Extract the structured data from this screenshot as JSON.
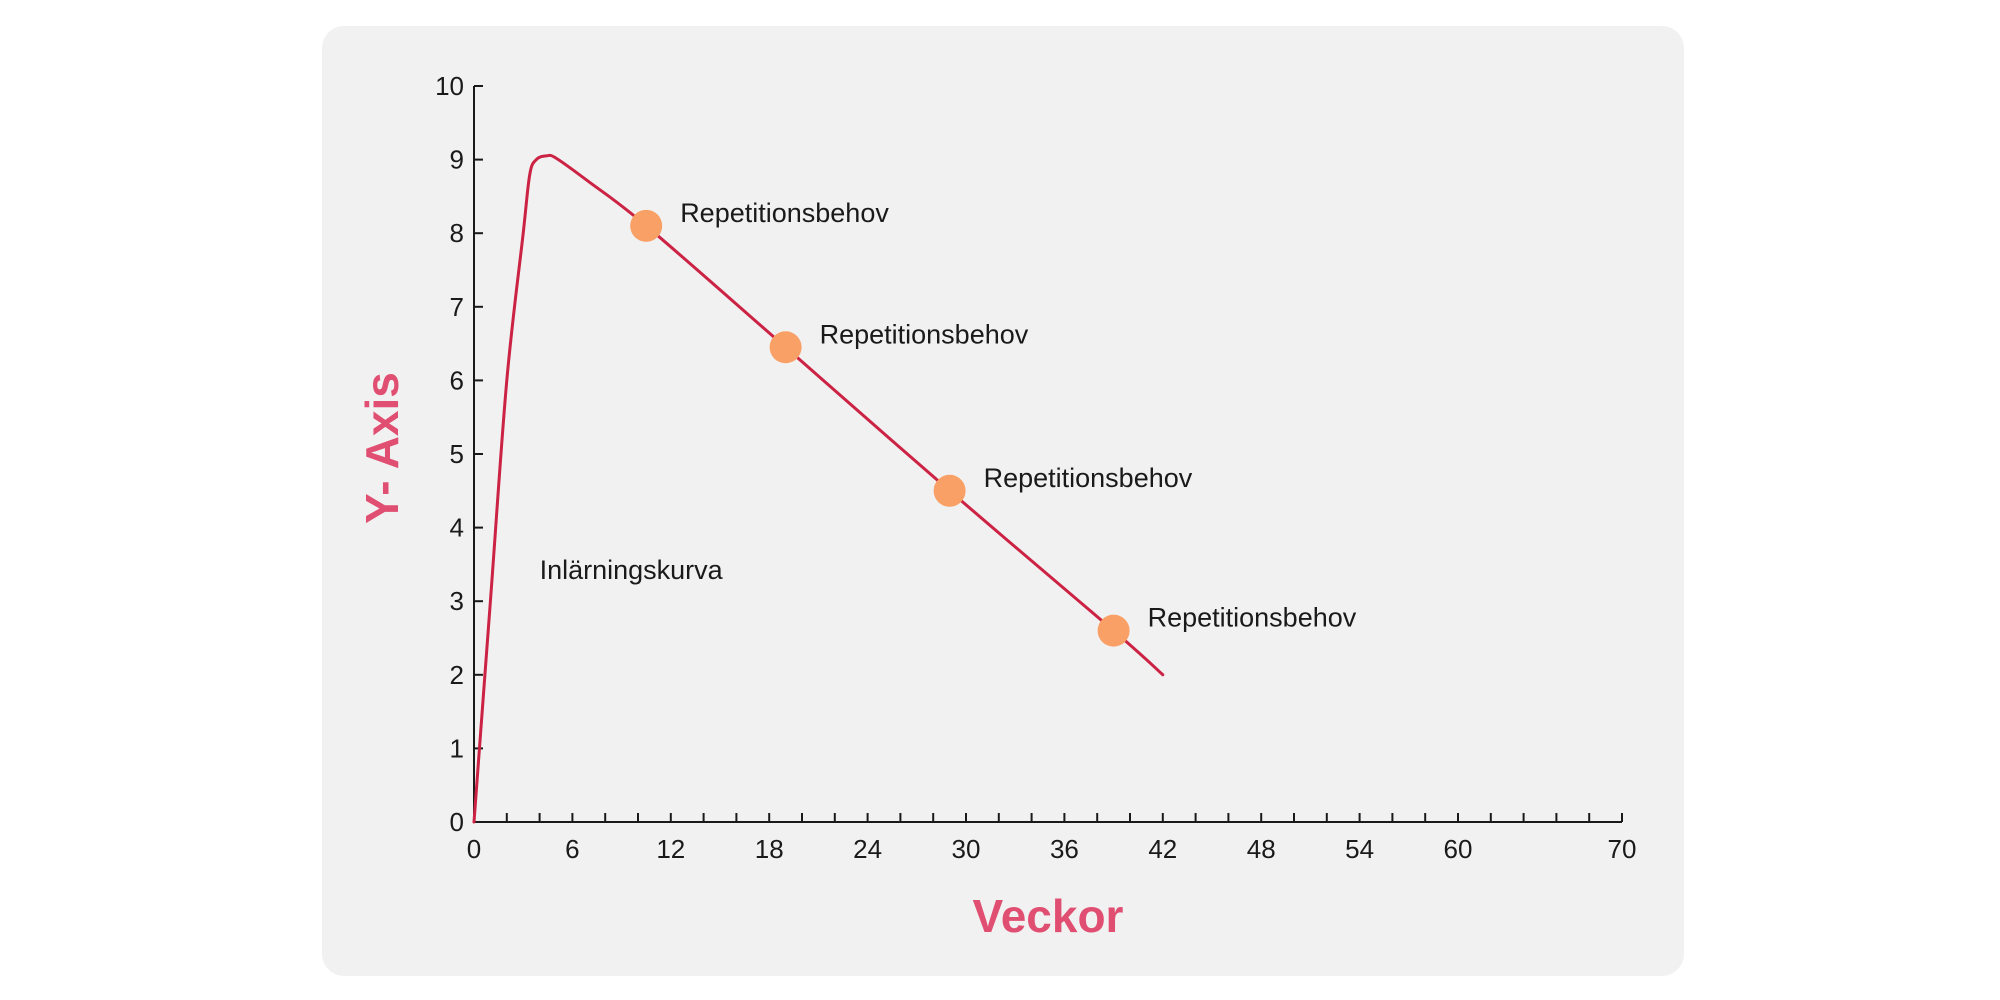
{
  "colors": {
    "curve": "#cc2244",
    "marker": "#f9a066",
    "axis": "#1a1a1a",
    "axis_title": "#e04f72"
  },
  "chart_data": {
    "type": "line",
    "title": "",
    "xlabel": "Veckor",
    "ylabel": "Y- Axis",
    "xlim": [
      0,
      70
    ],
    "ylim": [
      0,
      10
    ],
    "x_ticks": [
      0,
      6,
      12,
      18,
      24,
      30,
      36,
      42,
      48,
      54,
      60,
      70
    ],
    "y_ticks": [
      0,
      1,
      2,
      3,
      4,
      5,
      6,
      7,
      8,
      9,
      10
    ],
    "grid": false,
    "series": [
      {
        "name": "Inlärningskurva",
        "x": [
          0,
          1,
          2,
          3,
          3.4,
          3.8,
          4.4,
          5,
          7,
          10.5,
          19,
          29,
          39,
          42
        ],
        "y": [
          0,
          3.0,
          6.0,
          8.0,
          8.8,
          9.0,
          9.05,
          9.02,
          8.7,
          8.1,
          6.45,
          4.5,
          2.6,
          2.0
        ]
      }
    ],
    "markers": [
      {
        "x": 10.5,
        "y": 8.1,
        "label": "Repetitionsbehov"
      },
      {
        "x": 19,
        "y": 6.45,
        "label": "Repetitionsbehov"
      },
      {
        "x": 29,
        "y": 4.5,
        "label": "Repetitionsbehov"
      },
      {
        "x": 39,
        "y": 2.6,
        "label": "Repetitionsbehov"
      }
    ],
    "annotations": [
      {
        "text": "Inlärningskurva",
        "x": 4,
        "y": 3.3
      }
    ]
  }
}
